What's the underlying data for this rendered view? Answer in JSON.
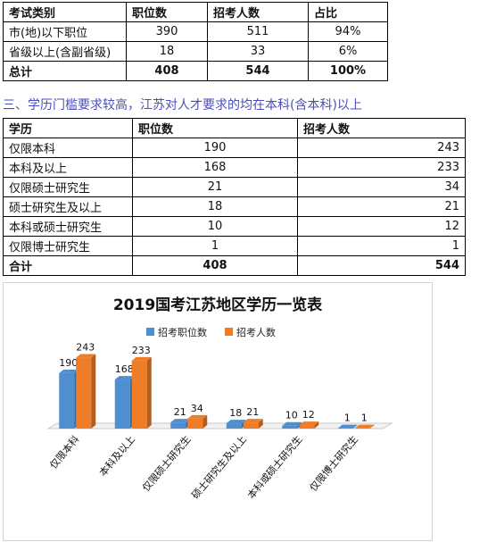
{
  "table1": {
    "headers": [
      "考试类别",
      "职位数",
      "招考人数",
      "占比"
    ],
    "rows": [
      [
        "市(地)以下职位",
        "390",
        "511",
        "94%"
      ],
      [
        "省级以上(含副省级)",
        "18",
        "33",
        "6%"
      ]
    ],
    "total": [
      "总计",
      "408",
      "544",
      "100%"
    ]
  },
  "section3_heading": "三、学历门槛要求较高，江苏对人才要求的均在本科(含本科)以上",
  "table2": {
    "headers": [
      "学历",
      "职位数",
      "招考人数"
    ],
    "rows": [
      [
        "仅限本科",
        "190",
        "243"
      ],
      [
        "本科及以上",
        "168",
        "233"
      ],
      [
        "仅限硕士研究生",
        "21",
        "34"
      ],
      [
        "硕士研究生及以上",
        "18",
        "21"
      ],
      [
        "本科或硕士研究生",
        "10",
        "12"
      ],
      [
        "仅限博士研究生",
        "1",
        "1"
      ]
    ],
    "total": [
      "合计",
      "408",
      "544"
    ]
  },
  "chart_data": {
    "type": "bar",
    "title": "2019国考江苏地区学历一览表",
    "categories": [
      "仅限本科",
      "本科及以上",
      "仅限硕士研究生",
      "硕士研究生及以上",
      "本科或硕士研究生",
      "仅限博士研究生"
    ],
    "series": [
      {
        "name": "招考职位数",
        "values": [
          190,
          168,
          21,
          18,
          10,
          1
        ],
        "color": "#4f8fcf"
      },
      {
        "name": "招考人数",
        "values": [
          243,
          233,
          34,
          21,
          12,
          1
        ],
        "color": "#ef7d27"
      }
    ],
    "legend_position": "top",
    "ylim": [
      0,
      260
    ],
    "grid": false
  }
}
